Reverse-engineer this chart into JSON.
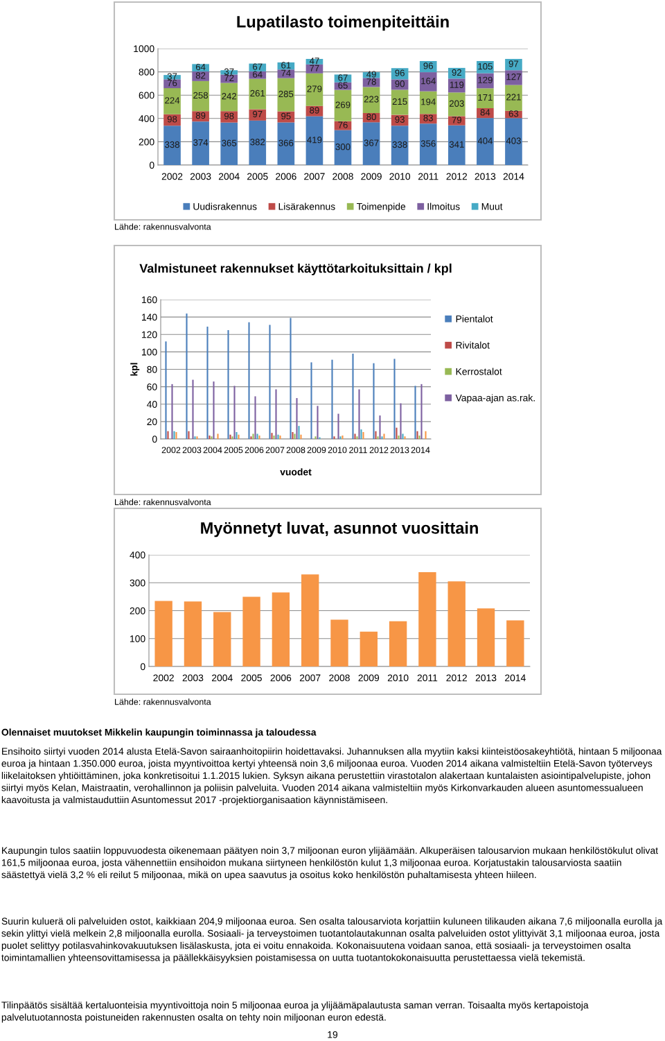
{
  "chart_data": [
    {
      "type": "bar",
      "title": "Lupatilasto toimenpiteittäin",
      "categories": [
        "2002",
        "2003",
        "2004",
        "2005",
        "2006",
        "2007",
        "2008",
        "2009",
        "2010",
        "2011",
        "2012",
        "2013",
        "2014"
      ],
      "stacked": true,
      "ylim": [
        0,
        1000
      ],
      "yticks": [
        0,
        200,
        400,
        600,
        800,
        1000
      ],
      "grid": "y",
      "legend": "bottom",
      "data_labels": true,
      "series": [
        {
          "name": "Uudisrakennus",
          "color": "#4a7ebb",
          "values": [
            338,
            374,
            365,
            382,
            366,
            419,
            300,
            367,
            338,
            356,
            341,
            404,
            403
          ]
        },
        {
          "name": "Lisärakennus",
          "color": "#be4b48",
          "values": [
            98,
            89,
            98,
            97,
            95,
            89,
            76,
            80,
            93,
            83,
            79,
            84,
            63
          ]
        },
        {
          "name": "Toimenpide",
          "color": "#98b954",
          "values": [
            224,
            258,
            242,
            261,
            285,
            279,
            269,
            223,
            215,
            194,
            203,
            171,
            221
          ]
        },
        {
          "name": "Ilmoitus",
          "color": "#7d60a0",
          "values": [
            76,
            82,
            72,
            64,
            74,
            77,
            65,
            78,
            90,
            164,
            119,
            129,
            127
          ]
        },
        {
          "name": "Muut",
          "color": "#46aac5",
          "values": [
            37,
            64,
            37,
            67,
            61,
            47,
            67,
            49,
            96,
            96,
            92,
            105,
            97
          ]
        }
      ],
      "annotations": [
        "Lähde: rakennusvalvonta"
      ]
    },
    {
      "type": "bar",
      "title": "Valmistuneet rakennukset käyttötarkoituksittain / kpl",
      "xlabel": "vuodet",
      "ylabel": "kpl",
      "categories": [
        "2002",
        "2003",
        "2004",
        "2005",
        "2006",
        "2007",
        "2008",
        "2009",
        "2010",
        "2011",
        "2012",
        "2013",
        "2014"
      ],
      "ylim": [
        0,
        160
      ],
      "yticks": [
        0,
        20,
        40,
        60,
        80,
        100,
        120,
        140,
        160
      ],
      "grid": "y",
      "legend": "right",
      "series": [
        {
          "name": "Pientalot",
          "color": "#4a7ebb",
          "values": [
            112,
            144,
            129,
            125,
            134,
            131,
            139,
            88,
            91,
            98,
            87,
            92,
            61
          ]
        },
        {
          "name": "Rivitalot",
          "color": "#be4b48",
          "values": [
            9,
            9,
            4,
            5,
            3,
            7,
            8,
            null,
            3,
            6,
            9,
            13,
            9
          ]
        },
        {
          "name": "Kerrostalot",
          "color": "#98b954",
          "values": [
            null,
            0,
            3,
            3,
            6,
            4,
            6,
            3,
            0,
            3,
            3,
            4,
            4
          ]
        },
        {
          "name": "Vapaa-ajan as.rak.",
          "color": "#7d60a0",
          "values": [
            63,
            68,
            66,
            61,
            49,
            57,
            47,
            38,
            29,
            57,
            27,
            41,
            63
          ]
        },
        {
          "color": "#46aac5",
          "values": [
            9,
            3,
            0,
            8,
            6,
            5,
            15,
            2,
            3,
            11,
            3,
            6,
            0
          ]
        },
        {
          "color": "#f79646",
          "values": [
            8,
            3,
            6,
            5,
            4,
            4,
            5,
            null,
            4,
            8,
            6,
            3,
            9
          ]
        }
      ],
      "annotations": [
        "Lähde: rakennusvalvonta"
      ]
    },
    {
      "type": "bar",
      "title": "Myönnetyt luvat, asunnot vuosittain",
      "categories": [
        "2002",
        "2003",
        "2004",
        "2005",
        "2006",
        "2007",
        "2008",
        "2009",
        "2010",
        "2011",
        "2012",
        "2013",
        "2014"
      ],
      "ylim": [
        0,
        400
      ],
      "yticks": [
        0,
        100,
        200,
        300,
        400
      ],
      "grid": "y",
      "color": "#f79646",
      "values": [
        235,
        233,
        195,
        250,
        265,
        330,
        168,
        125,
        162,
        338,
        305,
        208,
        165
      ],
      "annotations": [
        "Lähde: rakennusvalvonta"
      ]
    },
    {
      "type": "other",
      "title": "Olennaiset muutokset Mikkelin kaupungin toiminnassa ja taloudessa",
      "annotations": [
        "Ensihoito siirtyi vuoden 2014 alusta Etelä-Savon sairaanhoitopiirin hoidettavaksi. Juhannuksen alla myytiin kaksi kiinteistöosakeyhtiötä, hintaan 5 miljoonaa euroa ja hintaan 1.350.000 euroa, joista myyntivoittoa kertyi yhteensä noin 3,6 miljoonaa euroa. Vuoden 2014 aikana valmisteltiin Etelä-Savon työterveys liikelaitoksen yhtiöittäminen, joka konkretisoitui 1.1.2015 lukien. Syksyn aikana perustettiin virastotalon alakertaan kuntalaisten asiointipalvelupiste, johon siirtyi myös Kelan, Maistraatin, verohallinnon ja poliisin palveluita. Vuoden 2014 aikana valmisteltiin myös Kirkonvarkauden alueen asuntomessualueen kaavoitusta ja valmistauduttiin Asuntomessut 2017 -projektiorganisaation käynnistämiseen.",
        "Kaupungin tulos saatiin loppuvuodesta oikenemaan päätyen noin 3,7 miljoonan euron ylijäämään. Alkuperäisen talousarvion mukaan henkilöstökulut olivat 161,5 miljoonaa euroa, josta vähennettiin ensihoidon mukana siirtyneen henkilöstön kulut 1,3 miljoonaa euroa. Korjatustakin talousarviosta saatiin säästettyä vielä 3,2 % eli reilut 5 miljoonaa, mikä on upea saavutus ja osoitus koko henkilöstön puhaltamisesta yhteen hiileen.",
        "Suurin kuluerä oli palveluiden ostot, kaikkiaan 204,9 miljoonaa euroa. Sen osalta talousarviota korjattiin kuluneen tilikauden aikana 7,6 miljoonalla eurolla ja sekin ylittyi vielä melkein 2,8 miljoonalla eurolla. Sosiaali- ja terveystoimen tuotantolautakunnan osalta palveluiden ostot ylittyivät 3,1 miljoonaa euroa, josta puolet selittyy potilasvahinkovakuutuksen lisälaskusta, jota ei voitu ennakoida. Kokonaisuutena voidaan sanoa, että sosiaali- ja terveystoimen osalta toimintamallien yhteensovittamisessa ja päällekkäisyyksien poistamisessa on uutta tuotantokokonaisuutta perustettaessa vielä tekemistä.",
        "Tilinpäätös sisältää kertaluonteisia myyntivoittoja noin 5 miljoonaa euroa ja ylijäämäpalautusta saman verran. Toisaalta myös kertapoistoja palvelutuotannosta poistuneiden rakennusten osalta on tehty noin miljoonan euron edestä.",
        "19"
      ]
    }
  ]
}
